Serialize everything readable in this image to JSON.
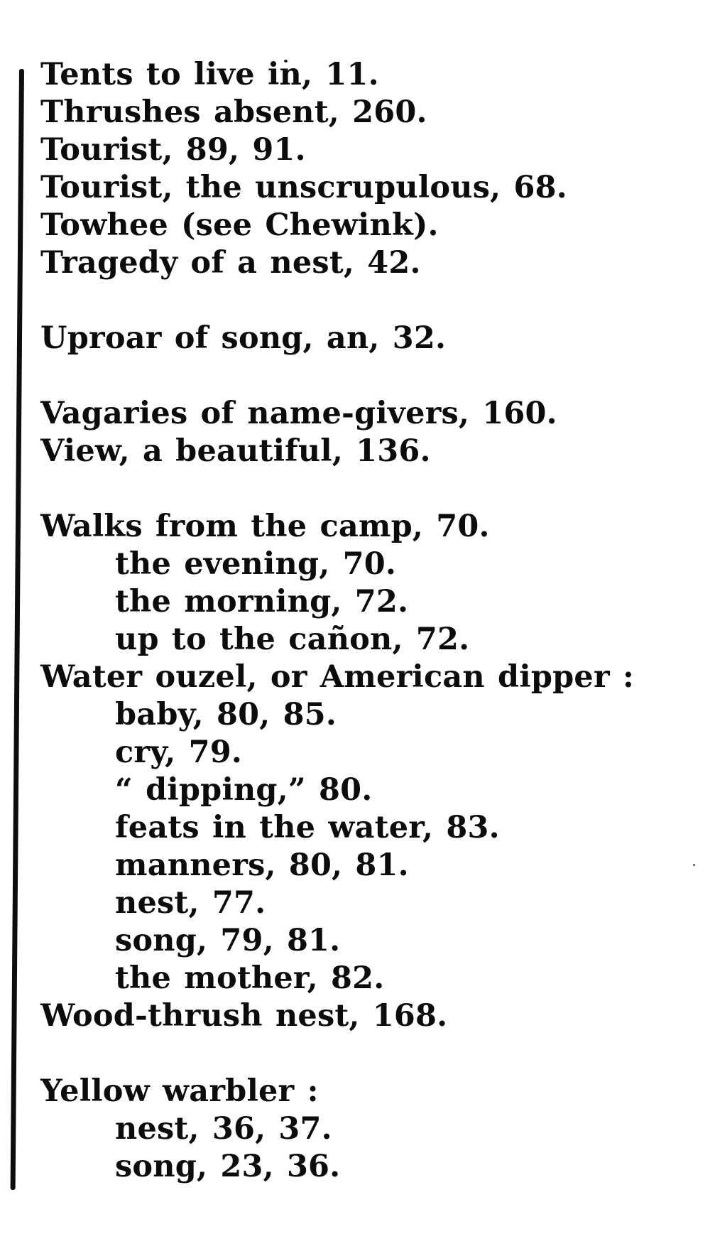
{
  "page": {
    "kind": "scanned-book-index-page",
    "paper_color": "#ffffff",
    "ink_color": "#0c0c0c"
  },
  "index_groups": [
    {
      "letter": "T",
      "entries": [
        {
          "level": 0,
          "text": "Tents to live in, 11."
        },
        {
          "level": 0,
          "text": "Thrushes absent, 260."
        },
        {
          "level": 0,
          "text": "Tourist, 89, 91."
        },
        {
          "level": 0,
          "text": "Tourist, the unscrupulous, 68."
        },
        {
          "level": 0,
          "text": "Towhee (see Chewink)."
        },
        {
          "level": 0,
          "text": "Tragedy of a nest, 42."
        }
      ]
    },
    {
      "letter": "U",
      "entries": [
        {
          "level": 0,
          "text": "Uproar of song, an, 32."
        }
      ]
    },
    {
      "letter": "V",
      "entries": [
        {
          "level": 0,
          "text": "Vagaries of name-givers, 160."
        },
        {
          "level": 0,
          "text": "View, a beautiful, 136."
        }
      ]
    },
    {
      "letter": "W",
      "entries": [
        {
          "level": 0,
          "text": "Walks from the camp, 70."
        },
        {
          "level": 1,
          "text": "the evening, 70."
        },
        {
          "level": 1,
          "text": "the morning, 72."
        },
        {
          "level": 1,
          "text": "up to the cañon, 72."
        },
        {
          "level": 0,
          "text": "Water ouzel, or American dipper :"
        },
        {
          "level": 1,
          "text": "baby, 80, 85."
        },
        {
          "level": 1,
          "text": "cry, 79."
        },
        {
          "level": 1,
          "text": "“ dipping,” 80."
        },
        {
          "level": 1,
          "text": "feats in the water, 83."
        },
        {
          "level": 1,
          "text": "manners, 80, 81."
        },
        {
          "level": 1,
          "text": "nest, 77."
        },
        {
          "level": 1,
          "text": "song, 79, 81."
        },
        {
          "level": 1,
          "text": "the mother, 82."
        },
        {
          "level": 0,
          "text": "Wood-thrush nest, 168."
        }
      ]
    },
    {
      "letter": "Y",
      "entries": [
        {
          "level": 0,
          "text": "Yellow warbler :"
        },
        {
          "level": 1,
          "text": "nest, 36, 37."
        },
        {
          "level": 1,
          "text": "song, 23, 36."
        }
      ]
    }
  ]
}
